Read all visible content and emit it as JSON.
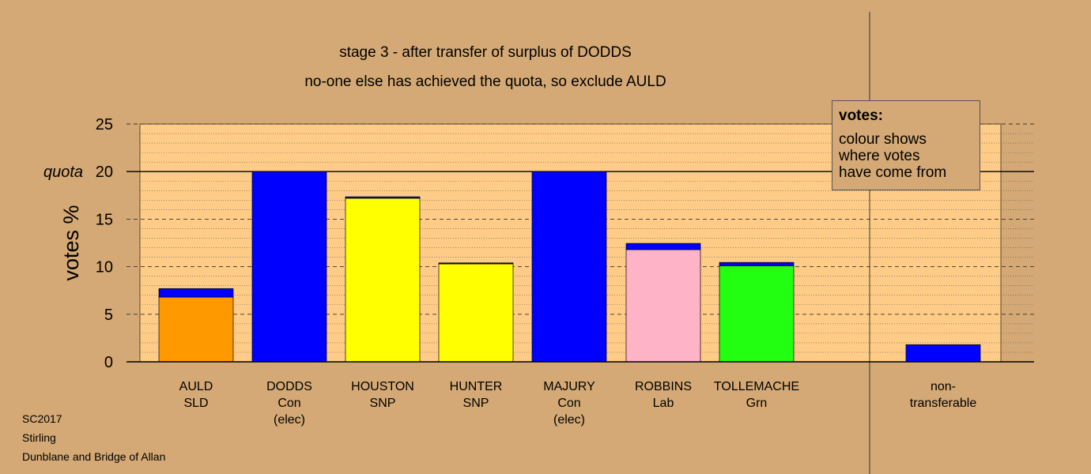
{
  "chart_data": {
    "type": "bar",
    "title": "stage 3 - after transfer of surplus of DODDS",
    "subtitle": "no-one else has achieved the quota, so exclude AULD",
    "ylabel": "votes %",
    "ylim": [
      0,
      25
    ],
    "yticks": [
      "0",
      "5",
      "10",
      "15",
      "20",
      "25"
    ],
    "quota": {
      "label": "quota",
      "value": 20
    },
    "categories": [
      {
        "name": "AULD",
        "line2": "SLD",
        "line3": ""
      },
      {
        "name": "DODDS",
        "line2": "Con",
        "line3": "(elec)"
      },
      {
        "name": "HOUSTON",
        "line2": "SNP",
        "line3": ""
      },
      {
        "name": "HUNTER",
        "line2": "SNP",
        "line3": ""
      },
      {
        "name": "MAJURY",
        "line2": "Con",
        "line3": "(elec)"
      },
      {
        "name": "ROBBINS",
        "line2": "Lab",
        "line3": ""
      },
      {
        "name": "TOLLEMACHE",
        "line2": "Grn",
        "line3": ""
      },
      {
        "name": "non-",
        "line2": "transferable",
        "line3": ""
      }
    ],
    "bars": [
      {
        "own": 6.8,
        "transferred": 0.9,
        "own_color": "#FF9900"
      },
      {
        "own": 0,
        "transferred": 20.0,
        "own_color": "#0000FF"
      },
      {
        "own": 17.2,
        "transferred": 0.15,
        "own_color": "#FFFF00"
      },
      {
        "own": 10.3,
        "transferred": 0.1,
        "own_color": "#FFFF00"
      },
      {
        "own": 0,
        "transferred": 20.0,
        "own_color": "#0000FF"
      },
      {
        "own": 11.8,
        "transferred": 0.65,
        "own_color": "#FFB3C6"
      },
      {
        "own": 10.1,
        "transferred": 0.35,
        "own_color": "#22FF11"
      },
      {
        "own": 0,
        "transferred": 1.8,
        "own_color": "#0000FF"
      }
    ],
    "transfer_color": "#0000FF",
    "grid": true,
    "legend_placement": "top-right"
  },
  "legend": {
    "heading": "votes:",
    "lines": [
      "colour shows",
      "where votes",
      "have come from"
    ]
  },
  "footer": {
    "line1": "SC2017",
    "line2": "Stirling",
    "line3": "Dunblane and Bridge of Allan"
  },
  "colors": {
    "background": "#D4A975",
    "plot_background": "#FFCC88"
  }
}
